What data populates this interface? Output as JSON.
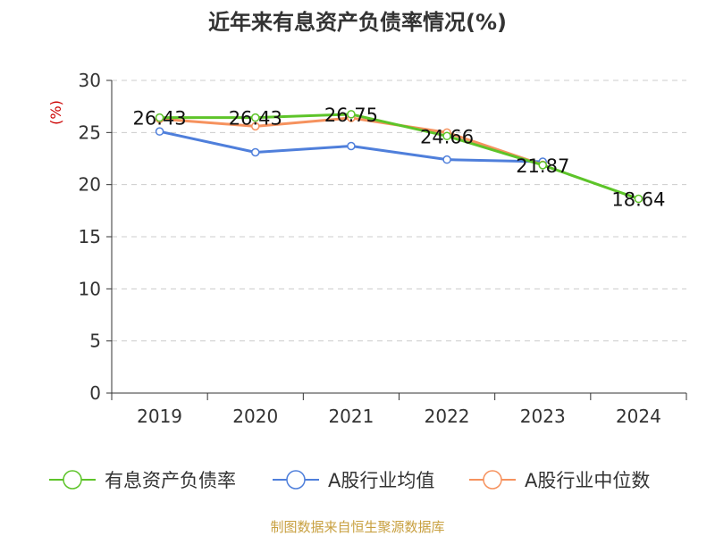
{
  "title": "近年来有息资产负债率情况(%)",
  "source_note": "制图数据来自恒生聚源数据库",
  "colors": {
    "series1": "#5dc429",
    "series2": "#4f7fdb",
    "series3": "#f6925e",
    "unit": "#cc0000",
    "axis": "#333333",
    "grid": "#cccccc",
    "source": "#c8a040"
  },
  "chart_data": {
    "type": "line",
    "title": "近年来有息资产负债率情况(%)",
    "ylabel": "(%)",
    "xlabel": "",
    "categories": [
      "2019",
      "2020",
      "2021",
      "2022",
      "2023",
      "2024"
    ],
    "ylim": [
      0,
      30
    ],
    "yticks": [
      0,
      5,
      10,
      15,
      20,
      25,
      30
    ],
    "grid": true,
    "legend_position": "bottom",
    "series": [
      {
        "name": "有息资产负债率",
        "values": [
          26.43,
          26.43,
          26.75,
          24.66,
          21.87,
          18.64
        ],
        "labels": [
          "26.43",
          "26.43",
          "26.75",
          "24.66",
          "21.87",
          "18.64"
        ]
      },
      {
        "name": "A股行业均值",
        "values": [
          25.1,
          23.1,
          23.7,
          22.4,
          22.2,
          null
        ]
      },
      {
        "name": "A股行业中位数",
        "values": [
          26.3,
          25.6,
          26.4,
          25.0,
          21.9,
          null
        ]
      }
    ]
  }
}
